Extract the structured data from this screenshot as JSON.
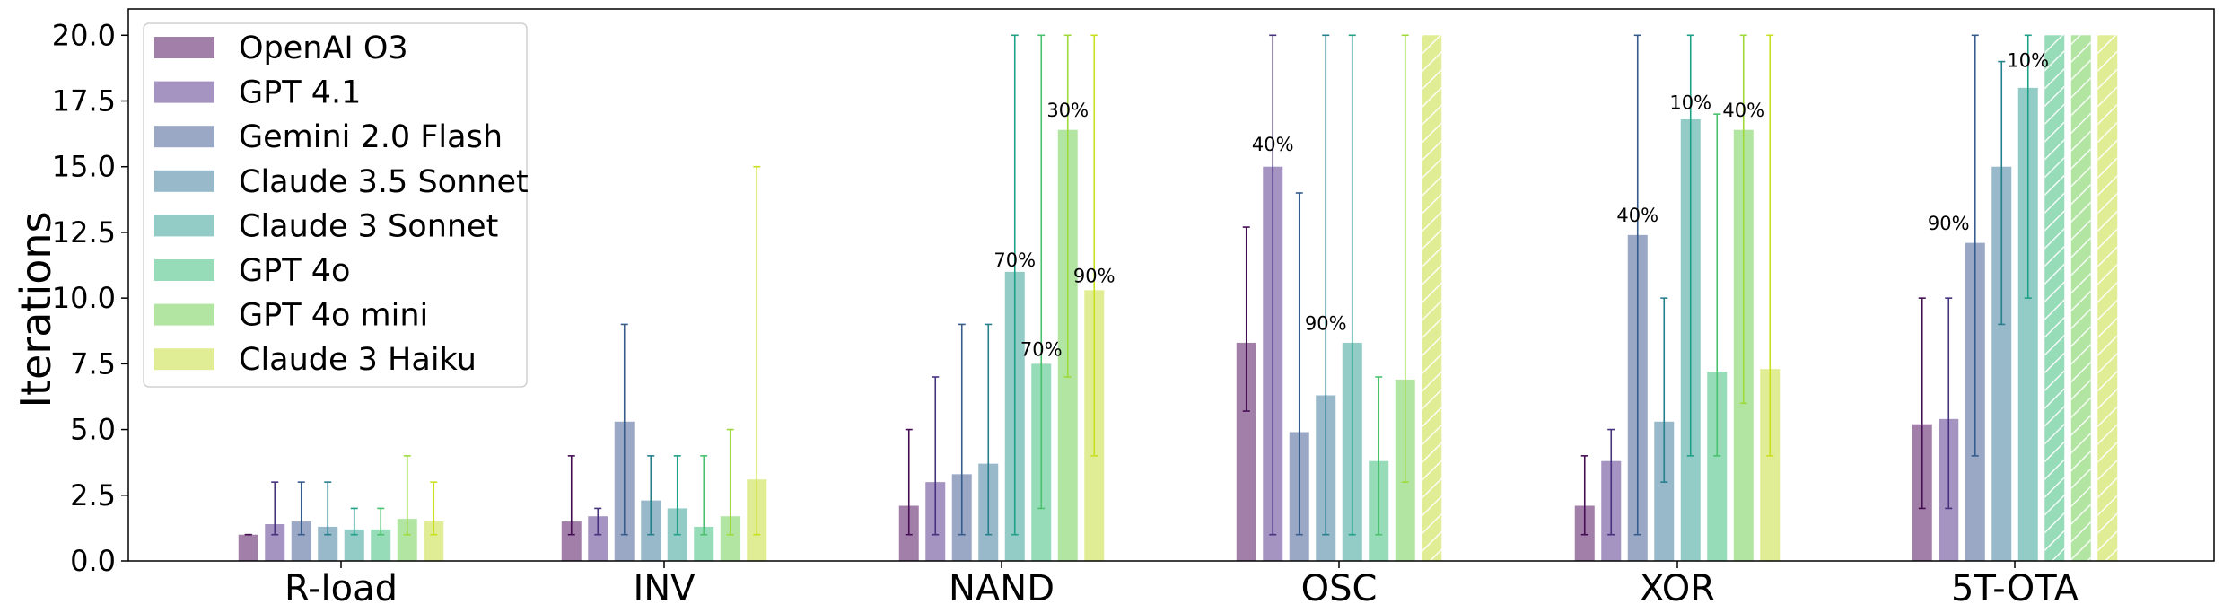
{
  "chart_data": {
    "type": "bar",
    "title": "",
    "xlabel": "",
    "ylabel": "Iterations",
    "ylim": [
      0,
      21
    ],
    "yticks": [
      "0.0",
      "2.5",
      "5.0",
      "7.5",
      "10.0",
      "12.5",
      "15.0",
      "17.5",
      "20.0"
    ],
    "grid": false,
    "legend_position": "top-left",
    "categories": [
      "R-load",
      "INV",
      "NAND",
      "OSC",
      "XOR",
      "5T-OTA"
    ],
    "series": [
      {
        "name": "OpenAI O3",
        "color": "#a27fa8",
        "values": [
          1.0,
          1.5,
          2.1,
          8.3,
          2.1,
          5.2
        ],
        "err_low": [
          1.0,
          1.0,
          1.0,
          5.7,
          1.0,
          2.0
        ],
        "err_high": [
          1.0,
          4.0,
          5.0,
          12.7,
          4.0,
          10.0
        ],
        "failed": [
          false,
          false,
          false,
          false,
          false,
          false
        ]
      },
      {
        "name": "GPT 4.1",
        "color": "#a593c2",
        "values": [
          1.4,
          1.7,
          3.0,
          15.0,
          3.8,
          5.4
        ],
        "err_low": [
          1.0,
          1.0,
          1.0,
          1.0,
          1.0,
          2.0
        ],
        "err_high": [
          3.0,
          2.0,
          7.0,
          20.0,
          5.0,
          10.0
        ],
        "failed": [
          false,
          false,
          false,
          false,
          false,
          false
        ]
      },
      {
        "name": "Gemini 2.0 Flash",
        "color": "#9aa8c6",
        "values": [
          1.5,
          5.3,
          3.3,
          4.9,
          12.4,
          12.1
        ],
        "err_low": [
          1.0,
          1.0,
          1.0,
          1.0,
          1.0,
          4.0
        ],
        "err_high": [
          3.0,
          9.0,
          9.0,
          14.0,
          20.0,
          20.0
        ],
        "failed": [
          false,
          false,
          false,
          false,
          false,
          false
        ]
      },
      {
        "name": "Claude 3.5 Sonnet",
        "color": "#98b9c9",
        "values": [
          1.3,
          2.3,
          3.7,
          6.3,
          5.3,
          15.0
        ],
        "err_low": [
          1.0,
          1.0,
          1.0,
          1.0,
          3.0,
          9.0
        ],
        "err_high": [
          3.0,
          4.0,
          9.0,
          20.0,
          10.0,
          19.0
        ],
        "failed": [
          false,
          false,
          false,
          false,
          false,
          false
        ]
      },
      {
        "name": "Claude 3 Sonnet",
        "color": "#93cbc7",
        "values": [
          1.2,
          2.0,
          11.0,
          8.3,
          16.8,
          18.0
        ],
        "err_low": [
          1.0,
          1.0,
          1.0,
          1.0,
          4.0,
          10.0
        ],
        "err_high": [
          2.0,
          4.0,
          20.0,
          20.0,
          20.0,
          20.0
        ],
        "failed": [
          false,
          false,
          false,
          false,
          false,
          false
        ]
      },
      {
        "name": "GPT 4o",
        "color": "#96dcb8",
        "values": [
          1.2,
          1.3,
          7.5,
          3.8,
          7.2,
          20.0
        ],
        "err_low": [
          1.0,
          1.0,
          2.0,
          1.0,
          4.0,
          20.0
        ],
        "err_high": [
          2.0,
          4.0,
          20.0,
          7.0,
          17.0,
          20.0
        ],
        "failed": [
          false,
          false,
          false,
          false,
          false,
          true
        ]
      },
      {
        "name": "GPT 4o mini",
        "color": "#b2e5a2",
        "values": [
          1.6,
          1.7,
          16.4,
          6.9,
          16.4,
          20.0
        ],
        "err_low": [
          1.0,
          1.0,
          7.0,
          3.0,
          6.0,
          20.0
        ],
        "err_high": [
          4.0,
          5.0,
          20.0,
          20.0,
          20.0,
          20.0
        ],
        "failed": [
          false,
          false,
          false,
          false,
          false,
          true
        ]
      },
      {
        "name": "Claude 3 Haiku",
        "color": "#e1ed94",
        "values": [
          1.5,
          3.1,
          10.3,
          20.0,
          7.3,
          20.0
        ],
        "err_low": [
          1.0,
          1.0,
          4.0,
          20.0,
          4.0,
          20.0
        ],
        "err_high": [
          3.0,
          15.0,
          20.0,
          20.0,
          20.0,
          20.0
        ],
        "failed": [
          false,
          false,
          false,
          true,
          false,
          true
        ]
      }
    ],
    "error_bar_colors": [
      "#440d54",
      "#46327e",
      "#365c8d",
      "#277f8e",
      "#1fa187",
      "#4ac16d",
      "#9fda3a",
      "#c8e020"
    ],
    "annotations": [
      {
        "text": "70%",
        "category": 2,
        "series": 4,
        "y": 11.2
      },
      {
        "text": "70%",
        "category": 2,
        "series": 5,
        "y": 7.8
      },
      {
        "text": "30%",
        "category": 2,
        "series": 6,
        "y": 16.9
      },
      {
        "text": "90%",
        "category": 2,
        "series": 7,
        "y": 10.6
      },
      {
        "text": "40%",
        "category": 3,
        "series": 1,
        "y": 15.6
      },
      {
        "text": "90%",
        "category": 3,
        "series": 3,
        "y": 8.8
      },
      {
        "text": "40%",
        "category": 4,
        "series": 2,
        "y": 12.9
      },
      {
        "text": "10%",
        "category": 4,
        "series": 4,
        "y": 17.2
      },
      {
        "text": "40%",
        "category": 4,
        "series": 6,
        "y": 16.9
      },
      {
        "text": "90%",
        "category": 5,
        "series": 1,
        "y": 12.6
      },
      {
        "text": "10%",
        "category": 5,
        "series": 4,
        "y": 18.8
      }
    ]
  }
}
